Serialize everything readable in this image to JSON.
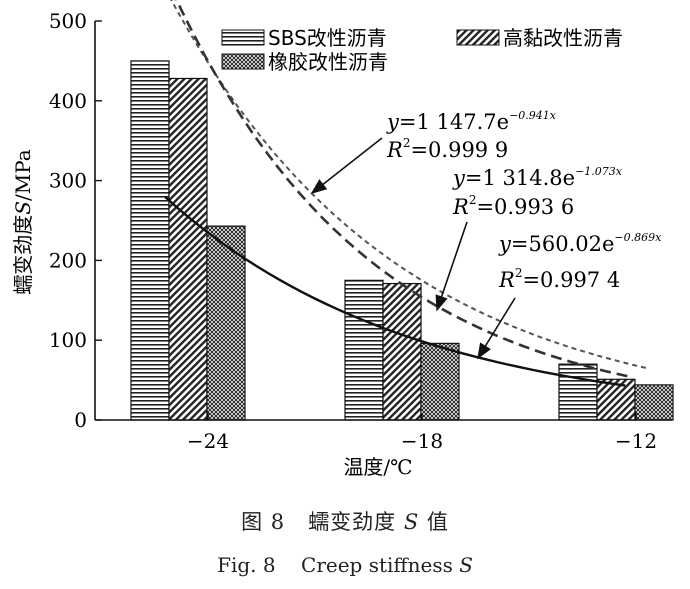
{
  "chart_data": {
    "type": "bar",
    "categories": [
      "−24",
      "−18",
      "−12"
    ],
    "series": [
      {
        "name": "SBS改性沥青",
        "values": [
          450,
          175,
          70
        ],
        "pattern": "pat-h"
      },
      {
        "name": "高黏改性沥青",
        "values": [
          428,
          171,
          51
        ],
        "pattern": "pat-d"
      },
      {
        "name": "橡胶改性沥青",
        "values": [
          243,
          96,
          44
        ],
        "pattern": "pat-x"
      }
    ],
    "ylim": [
      0,
      500
    ],
    "yticks": [
      "0",
      "100",
      "200",
      "300",
      "400",
      "500"
    ],
    "xlabel": "温度/℃",
    "ylabel_parts": [
      "蠕变劲度",
      "S",
      "/MPa"
    ],
    "fits": [
      {
        "style": "dotted",
        "a": 1147.7,
        "b": 0.941,
        "y_label": "y",
        "r_label": "R",
        "r_sup": "2",
        "eq_coef": "=1 147.7e",
        "eq_exp": "−0.941x",
        "r2": "=0.999 9",
        "color": "#555555"
      },
      {
        "style": "dashed",
        "a": 1314.8,
        "b": 1.073,
        "y_label": "y",
        "r_label": "R",
        "r_sup": "2",
        "eq_coef": "=1 314.8e",
        "eq_exp": "−1.073x",
        "r2": "=0.993 6",
        "color": "#333333"
      },
      {
        "style": "solid",
        "a": 560.02,
        "b": 0.869,
        "y_label": "y",
        "r_label": "R",
        "r_sup": "2",
        "eq_coef": "=560.02e",
        "eq_exp": "−0.869x",
        "r2": "=0.997 4",
        "color": "#111111"
      }
    ]
  },
  "caption": {
    "cn_fig": "图 8",
    "cn_title": "蠕变劲度",
    "cn_var": "S",
    "cn_tail": "值",
    "en_fig": "Fig. 8",
    "en_title": "Creep stiffness",
    "en_var": "S"
  }
}
